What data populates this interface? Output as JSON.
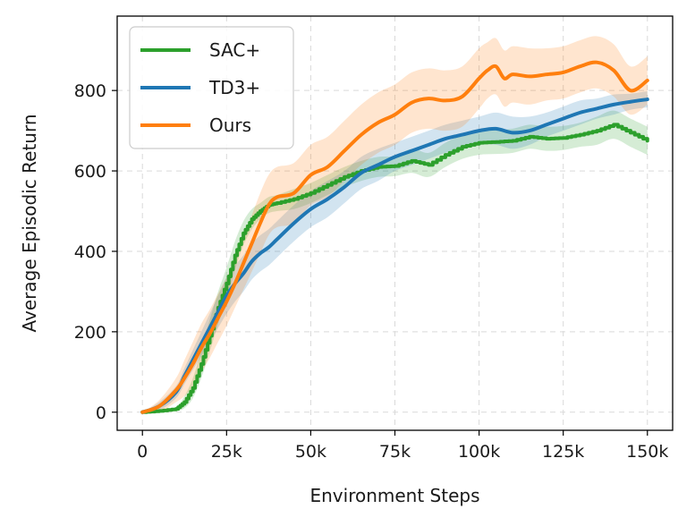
{
  "chart_data": {
    "type": "line",
    "title": "",
    "xlabel": "Environment Steps",
    "ylabel": "Average Episodic Return",
    "xlim": [
      -7500,
      157500
    ],
    "ylim": [
      -45,
      985
    ],
    "x_ticks": [
      0,
      25000,
      50000,
      75000,
      100000,
      125000,
      150000
    ],
    "x_tick_labels": [
      "0",
      "25k",
      "50k",
      "75k",
      "100k",
      "125k",
      "150k"
    ],
    "y_ticks": [
      0,
      200,
      400,
      600,
      800
    ],
    "y_tick_labels": [
      "0",
      "200",
      "400",
      "600",
      "800"
    ],
    "grid": true,
    "legend_position": "top-left",
    "series": [
      {
        "name": "SAC+",
        "color": "#2ca02c",
        "step": true,
        "x": [
          0,
          5000,
          10000,
          12500,
          15000,
          17500,
          20000,
          22500,
          25000,
          27500,
          30000,
          32500,
          35000,
          37500,
          40000,
          45000,
          50000,
          55000,
          60000,
          65000,
          70000,
          75000,
          80000,
          85000,
          90000,
          95000,
          100000,
          105000,
          110000,
          115000,
          120000,
          125000,
          130000,
          135000,
          140000,
          145000,
          150000
        ],
        "y": [
          0,
          3,
          8,
          25,
          60,
          120,
          190,
          260,
          320,
          390,
          445,
          480,
          500,
          515,
          520,
          530,
          545,
          565,
          585,
          600,
          610,
          612,
          625,
          615,
          640,
          660,
          670,
          672,
          675,
          685,
          680,
          682,
          690,
          700,
          715,
          695,
          675
        ],
        "band": [
          0,
          2,
          5,
          15,
          25,
          35,
          40,
          40,
          40,
          35,
          30,
          25,
          20,
          20,
          20,
          25,
          25,
          25,
          25,
          25,
          25,
          25,
          30,
          30,
          30,
          30,
          30,
          30,
          30,
          30,
          30,
          30,
          30,
          35,
          35,
          35,
          35
        ]
      },
      {
        "name": "TD3+",
        "color": "#1f77b4",
        "step": false,
        "x": [
          0,
          5000,
          10000,
          12500,
          15000,
          17500,
          20000,
          22500,
          25000,
          27500,
          30000,
          32500,
          35000,
          37500,
          40000,
          45000,
          50000,
          55000,
          60000,
          65000,
          70000,
          75000,
          80000,
          85000,
          90000,
          95000,
          100000,
          105000,
          110000,
          115000,
          120000,
          125000,
          130000,
          135000,
          140000,
          145000,
          150000
        ],
        "y": [
          0,
          15,
          50,
          90,
          130,
          170,
          210,
          250,
          290,
          320,
          345,
          375,
          395,
          410,
          430,
          470,
          505,
          530,
          560,
          595,
          615,
          635,
          650,
          665,
          680,
          690,
          700,
          705,
          695,
          700,
          715,
          730,
          745,
          755,
          765,
          772,
          778
        ],
        "band": [
          0,
          10,
          15,
          20,
          25,
          30,
          35,
          40,
          45,
          45,
          45,
          45,
          45,
          45,
          45,
          45,
          45,
          45,
          40,
          40,
          40,
          35,
          35,
          35,
          35,
          35,
          35,
          40,
          40,
          35,
          30,
          30,
          30,
          25,
          25,
          20,
          20
        ]
      },
      {
        "name": "Ours",
        "color": "#ff7f0e",
        "step": false,
        "x": [
          0,
          5000,
          10000,
          12500,
          15000,
          17500,
          20000,
          22500,
          25000,
          27500,
          30000,
          32500,
          35000,
          37500,
          40000,
          45000,
          50000,
          55000,
          60000,
          65000,
          70000,
          75000,
          80000,
          85000,
          90000,
          95000,
          100000,
          102500,
          105000,
          107500,
          110000,
          115000,
          120000,
          125000,
          130000,
          135000,
          140000,
          145000,
          150000
        ],
        "y": [
          0,
          15,
          55,
          85,
          120,
          160,
          195,
          235,
          275,
          320,
          370,
          420,
          470,
          515,
          535,
          545,
          590,
          610,
          650,
          690,
          720,
          740,
          770,
          780,
          775,
          785,
          830,
          850,
          860,
          830,
          840,
          835,
          840,
          845,
          860,
          870,
          850,
          800,
          825
        ],
        "band": [
          0,
          15,
          30,
          45,
          55,
          60,
          60,
          60,
          60,
          60,
          65,
          70,
          75,
          75,
          75,
          75,
          75,
          75,
          75,
          75,
          75,
          75,
          75,
          75,
          75,
          75,
          75,
          70,
          70,
          70,
          70,
          70,
          65,
          65,
          65,
          65,
          65,
          60,
          60
        ]
      }
    ]
  }
}
